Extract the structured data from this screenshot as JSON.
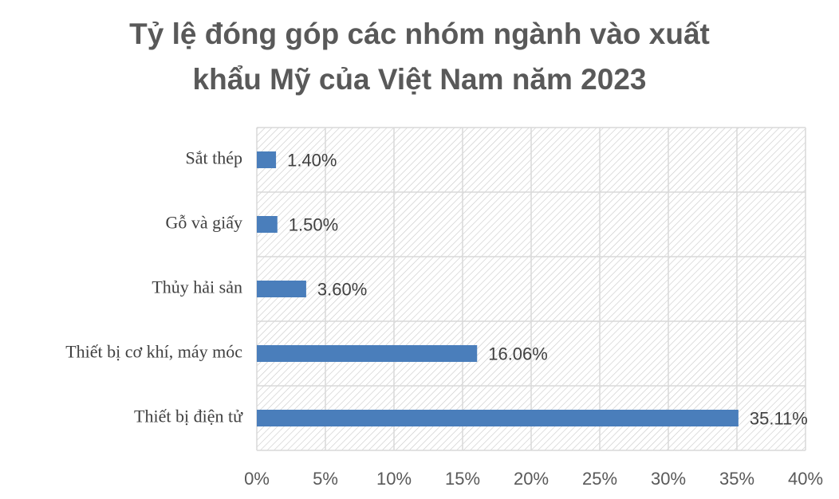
{
  "chart_data": {
    "type": "bar",
    "orientation": "horizontal",
    "title": "Tỷ lệ đóng góp các nhóm ngành vào xuất khẩu Mỹ của Việt Nam năm 2023",
    "categories": [
      "Sắt thép",
      "Gỗ và giấy",
      "Thủy hải sản",
      "Thiết bị cơ khí, máy móc",
      "Thiết bị điện tử"
    ],
    "values": [
      1.4,
      1.5,
      3.6,
      16.06,
      35.11
    ],
    "value_labels": [
      "1.40%",
      "1.50%",
      "3.60%",
      "16.06%",
      "35.11%"
    ],
    "color": "#4a7ebb",
    "xlim": [
      0,
      40
    ],
    "xticks": [
      {
        "value": 0,
        "label": "0%"
      },
      {
        "value": 5,
        "label": "5%"
      },
      {
        "value": 10,
        "label": "10%"
      },
      {
        "value": 15,
        "label": "15%"
      },
      {
        "value": 20,
        "label": "20%"
      },
      {
        "value": 25,
        "label": "25%"
      },
      {
        "value": 30,
        "label": "30%"
      },
      {
        "value": 35,
        "label": "35%"
      },
      {
        "value": 40,
        "label": "40%"
      }
    ],
    "grid": true
  }
}
